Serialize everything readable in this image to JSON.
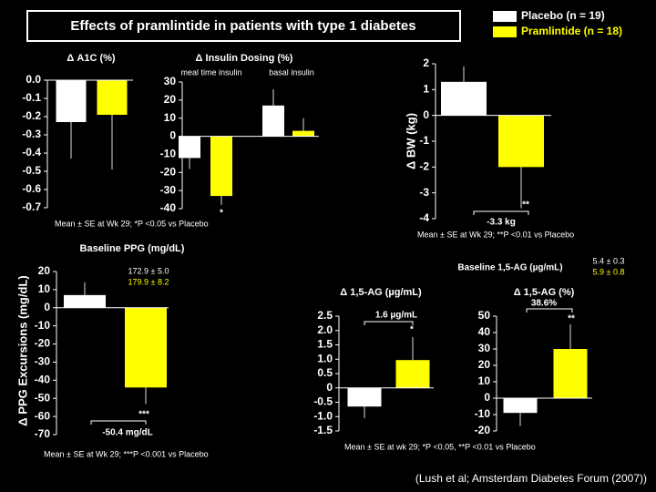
{
  "title": "Effects of pramlintide in patients with type 1 diabetes",
  "legend": [
    {
      "name": "Placebo (n = 19)",
      "color": "#ffffff"
    },
    {
      "name": "Pramlintide (n = 18)",
      "color": "#ffff00"
    }
  ],
  "chart_data": [
    {
      "type": "bar",
      "title": "Δ A1C (%)",
      "ylim": [
        -0.7,
        0
      ],
      "yticks": [
        {
          "value": 0,
          "label": "0.0"
        },
        -0.1,
        -0.2,
        -0.3,
        -0.4,
        -0.5,
        -0.6,
        -0.7
      ],
      "series": [
        {
          "color": "#ffffff",
          "values": [
            -0.23
          ],
          "errors": [
            0.2
          ]
        },
        {
          "color": "#ffff00",
          "values": [
            -0.19
          ],
          "errors": [
            0.3
          ]
        }
      ]
    },
    {
      "type": "bar",
      "title": "Δ Insulin Dosing (%)",
      "categories": [
        "meal time insulin",
        "basal insulin"
      ],
      "ylim": [
        -40,
        30
      ],
      "yticks": [
        30,
        20,
        10,
        0,
        -10,
        -20,
        -30,
        -40
      ],
      "series": [
        {
          "color": "#ffffff",
          "values": [
            -12,
            17
          ],
          "errors": [
            6,
            9
          ]
        },
        {
          "color": "#ffff00",
          "values": [
            -33,
            3
          ],
          "errors": [
            5,
            7
          ]
        }
      ],
      "annotations": [
        {
          "text": "*"
        }
      ],
      "note": "Mean ± SE at Wk 29; *P <0.05 vs Placebo"
    },
    {
      "type": "bar",
      "ylabel": "Δ BW (kg)",
      "ylim": [
        -4,
        2
      ],
      "yticks": [
        2,
        1,
        0,
        -1,
        -2,
        -3,
        -4
      ],
      "series": [
        {
          "color": "#ffffff",
          "values": [
            1.3
          ],
          "errors": [
            0.6
          ]
        },
        {
          "color": "#ffff00",
          "values": [
            -2.0
          ],
          "errors": [
            1.6
          ]
        }
      ],
      "annotations": [
        {
          "text": "-3.3 kg"
        },
        {
          "text": "**"
        }
      ],
      "note": "Mean ± SE at Wk 29; **P <0.01 vs Placebo"
    },
    {
      "type": "bar",
      "title": "Baseline PPG (mg/dL)",
      "ylabel": "Δ PPG Excursions (mg/dL)",
      "ylim": [
        -70,
        20
      ],
      "yticks": [
        20,
        10,
        0,
        -10,
        -20,
        -30,
        -40,
        -50,
        -60,
        -70
      ],
      "series": [
        {
          "color": "#ffffff",
          "values": [
            7
          ],
          "errors": [
            7
          ]
        },
        {
          "color": "#ffff00",
          "values": [
            -44
          ],
          "errors": [
            9
          ]
        }
      ],
      "annotations": [
        {
          "text": "172.9 ± 5.0",
          "color": "#ffffff"
        },
        {
          "text": "179.9 ± 8.2",
          "color": "#ffff00"
        },
        {
          "text": "***"
        },
        {
          "text": "-50.4 mg/dL"
        }
      ],
      "note": "Mean ± SE at Wk 29; ***P <0.001 vs Placebo"
    },
    {
      "type": "bar",
      "title": "Δ 1,5-AG (µg/mL)",
      "ylim": [
        -1.5,
        2.5
      ],
      "yticks": [
        2.5,
        {
          "value": 2,
          "label": "2.0"
        },
        1.5,
        {
          "value": 1,
          "label": "1.0"
        },
        0.5,
        0,
        -0.5,
        {
          "value": -1,
          "label": "-1.0"
        },
        -1.5
      ],
      "series": [
        {
          "color": "#ffffff",
          "values": [
            -0.65
          ],
          "errors": [
            0.4
          ]
        },
        {
          "color": "#ffff00",
          "values": [
            0.97
          ],
          "errors": [
            0.8
          ]
        }
      ],
      "annotations": [
        {
          "text": "1.6 µg/mL"
        },
        {
          "text": "*"
        },
        {
          "text": "Baseline 1,5-AG (µg/mL)"
        },
        {
          "text": "5.4 ± 0.3",
          "color": "#ffffff"
        },
        {
          "text": "5.9 ± 0.8",
          "color": "#ffff00"
        }
      ],
      "note": "Mean ± SE at wk 29; *P <0.05, **P <0.01 vs Placebo"
    },
    {
      "type": "bar",
      "title": "Δ 1,5-AG (%)",
      "ylim": [
        -20,
        50
      ],
      "yticks": [
        50,
        40,
        30,
        20,
        10,
        0,
        -10,
        -20
      ],
      "series": [
        {
          "color": "#ffffff",
          "values": [
            -9
          ],
          "errors": [
            8
          ]
        },
        {
          "color": "#ffff00",
          "values": [
            30
          ],
          "errors": [
            15
          ]
        }
      ],
      "annotations": [
        {
          "text": "38.6%"
        },
        {
          "text": "**"
        }
      ]
    }
  ],
  "citation": "(Lush et al; Amsterdam Diabetes Forum (2007))"
}
